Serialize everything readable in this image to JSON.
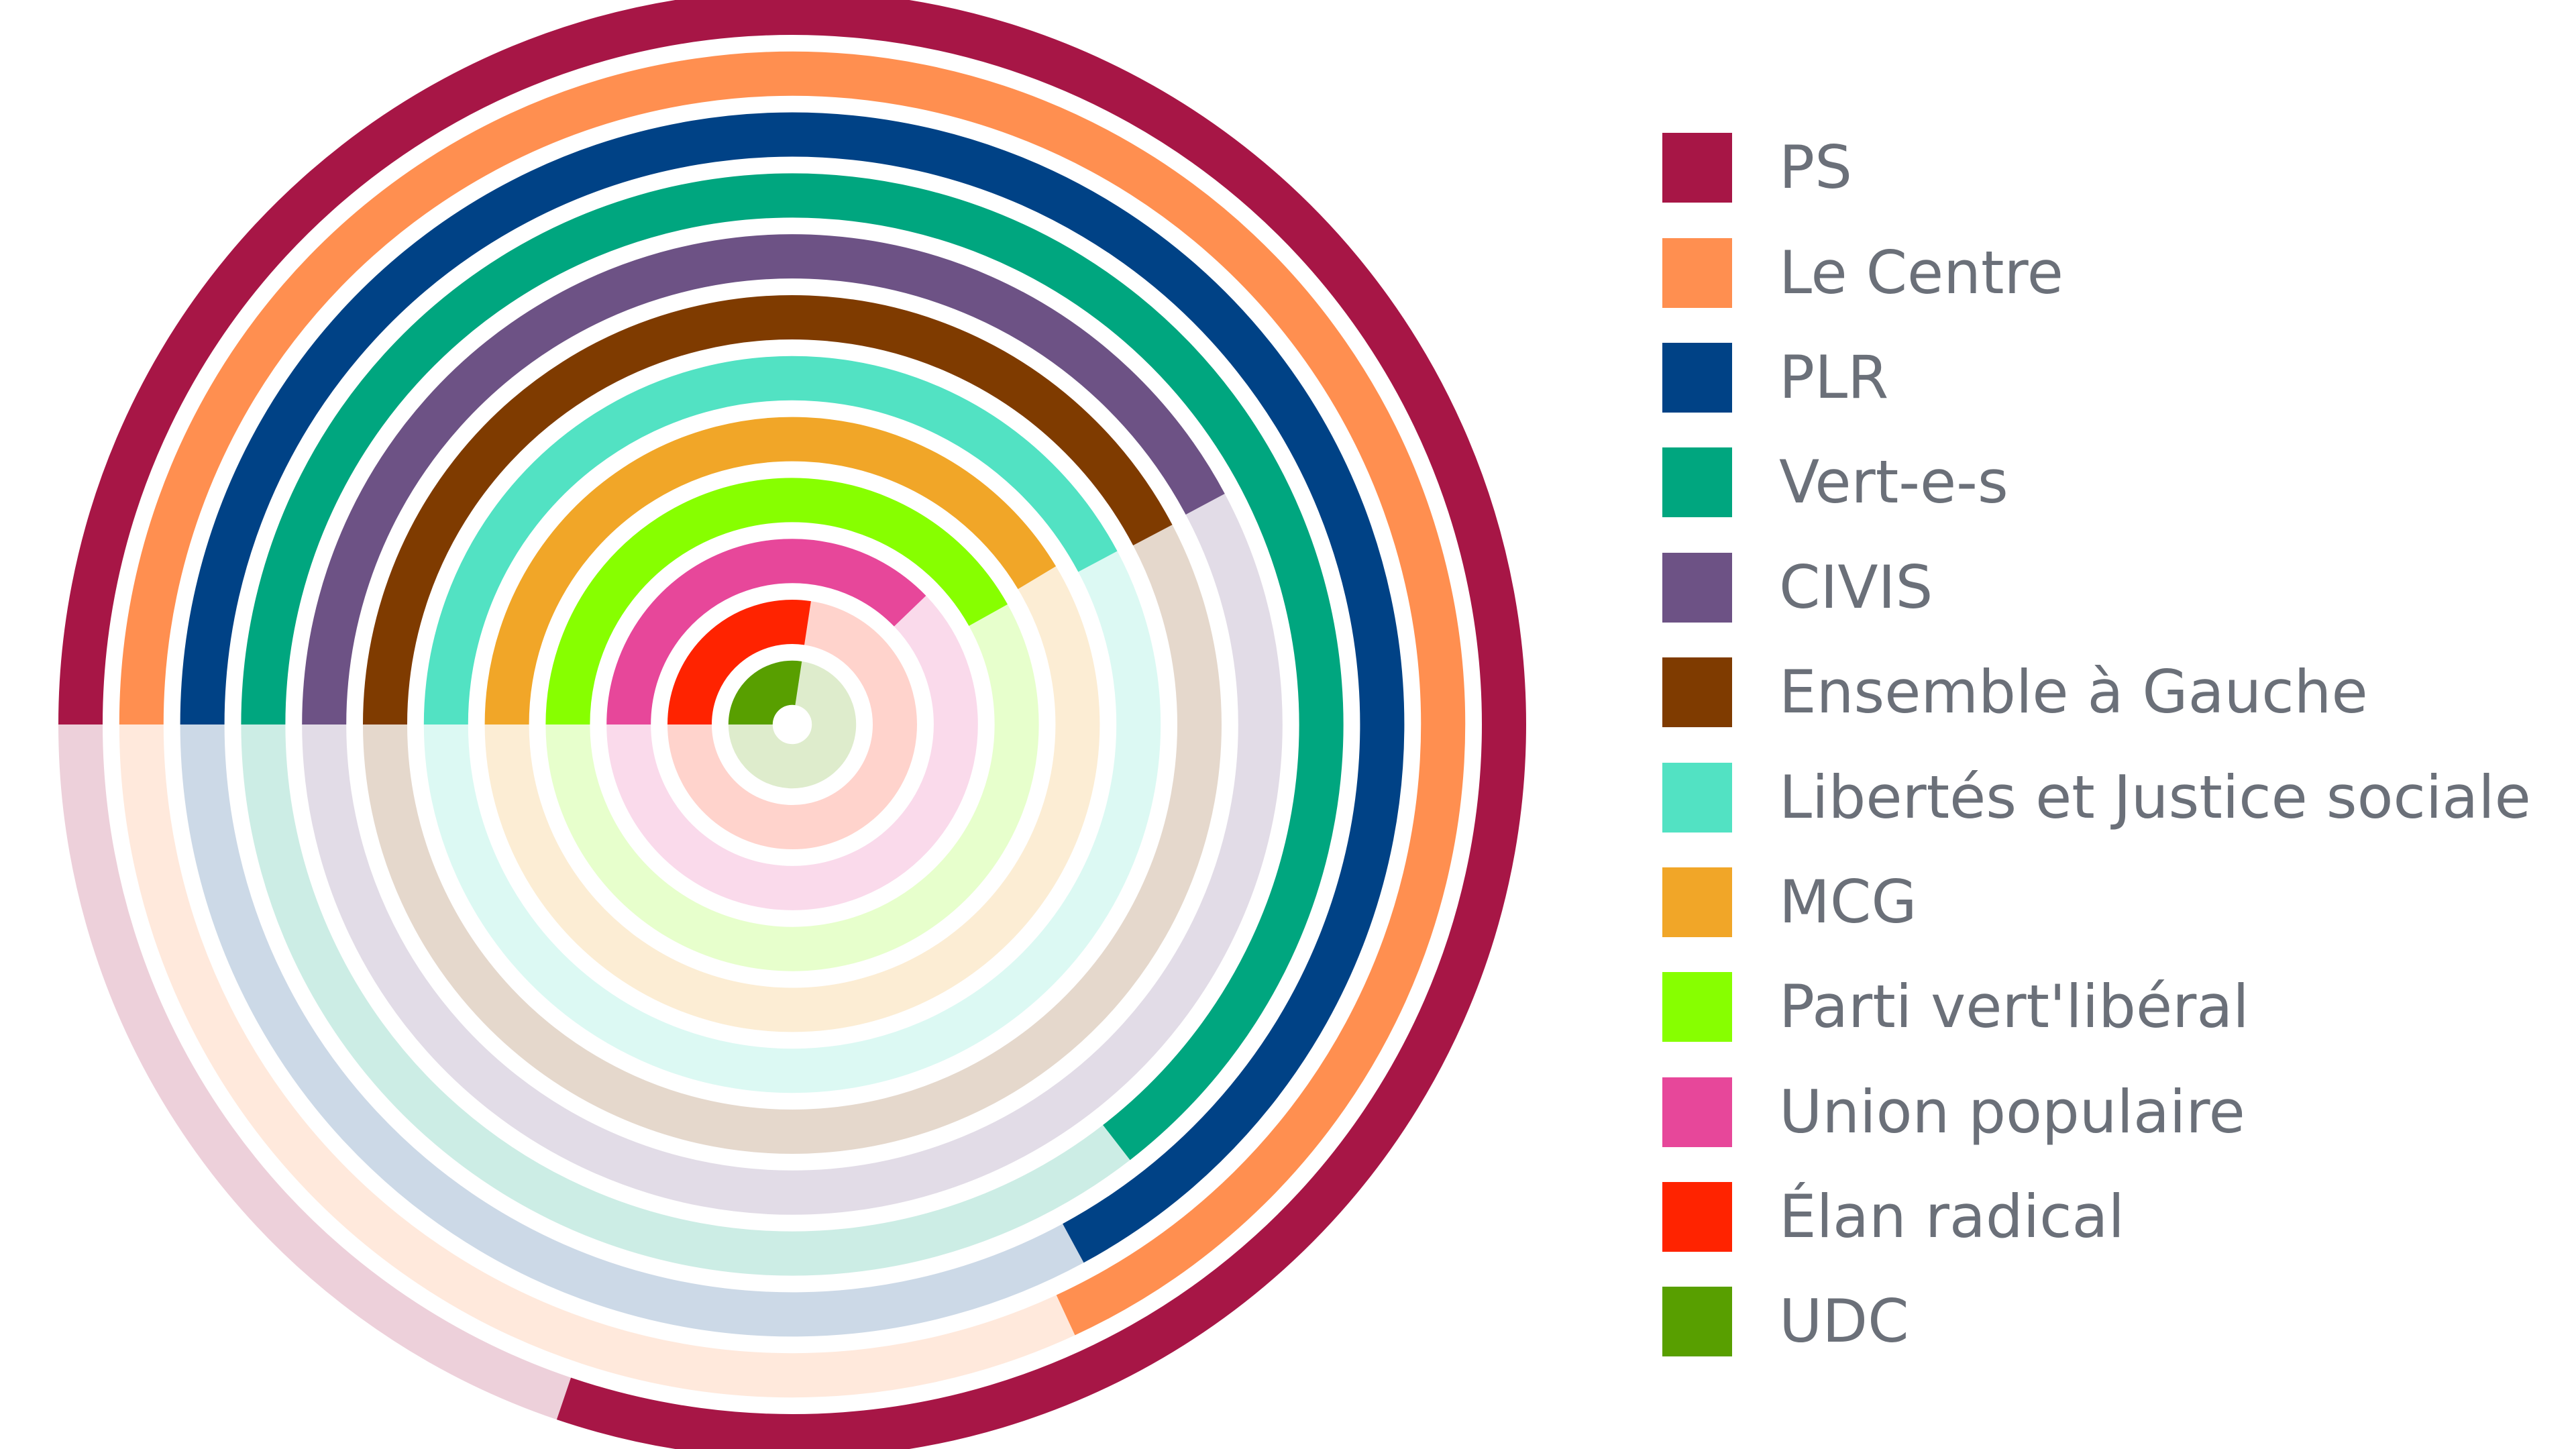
{
  "chart_data": {
    "type": "radial-bar",
    "title": "",
    "max": 100,
    "start_angle": "left (9 o'clock), clockwise",
    "legend_position": "right",
    "series": [
      {
        "name": "PS",
        "value": 80.2,
        "color": "#a71646"
      },
      {
        "name": "Le Centre",
        "value": 68.1,
        "color": "#ff8f50"
      },
      {
        "name": "PLR",
        "value": 67.1,
        "color": "#004286"
      },
      {
        "name": "Vert-e-s",
        "value": 64.5,
        "color": "#00a67f"
      },
      {
        "name": "CIVIS",
        "value": 42.2,
        "color": "#6d5285"
      },
      {
        "name": "Ensemble à Gauche",
        "value": 42.3,
        "color": "#7f3b00"
      },
      {
        "name": "Libertés et Justice sociale",
        "value": 42.2,
        "color": "#52e2c3"
      },
      {
        "name": "MCG",
        "value": 41.4,
        "color": "#f1a628"
      },
      {
        "name": "Parti vert'libéral",
        "value": 41.9,
        "color": "#87ff00"
      },
      {
        "name": "Union populaire",
        "value": 37.8,
        "color": "#e7479a"
      },
      {
        "name": "Élan radical",
        "value": 27.4,
        "color": "#ff2300"
      },
      {
        "name": "UDC",
        "value": 27.4,
        "color": "#589f00"
      }
    ]
  }
}
